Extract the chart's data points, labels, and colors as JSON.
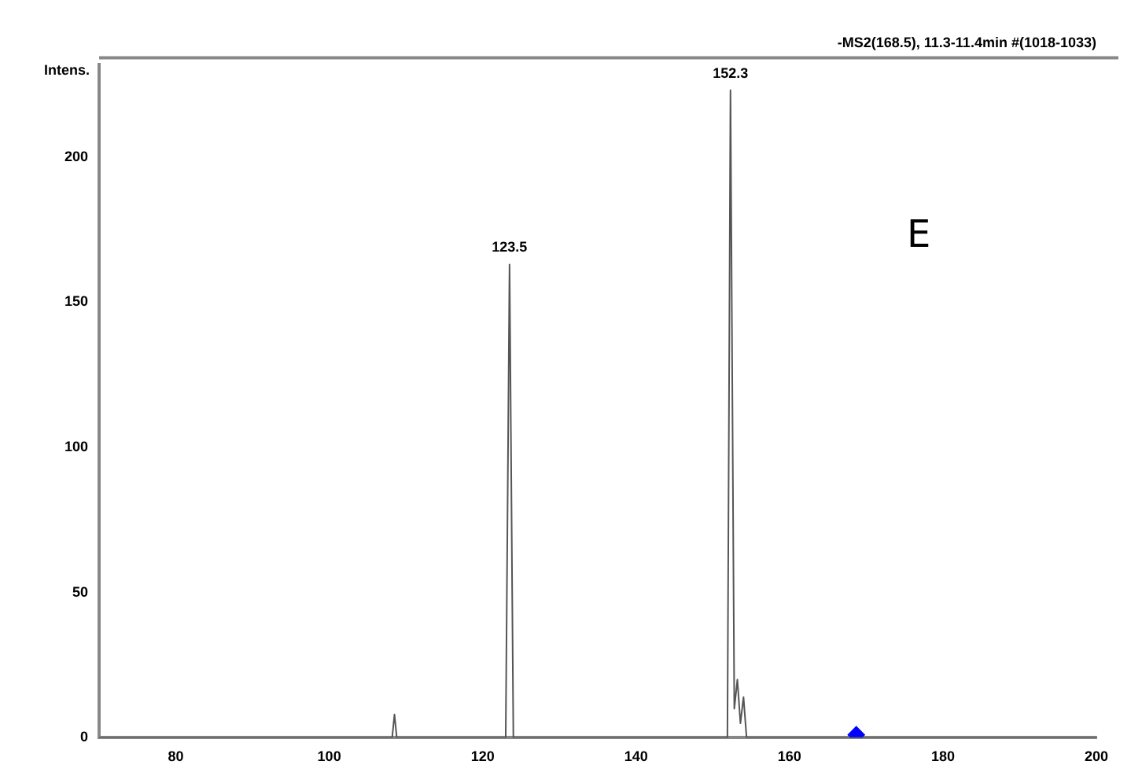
{
  "chart_data": {
    "type": "line",
    "title": "-MS2(168.5), 11.3-11.4min #(1018-1033)",
    "ylabel": "Intens.",
    "xlim": [
      70,
      200
    ],
    "xticks": [
      80,
      100,
      120,
      140,
      160,
      180,
      200
    ],
    "ylim": [
      0,
      232
    ],
    "yticks": [
      0,
      50,
      100,
      150,
      200
    ],
    "grid": false,
    "legend": false,
    "series": [
      {
        "marker": "none",
        "color": "#555555",
        "x": [
          70,
          108.2,
          108.5,
          108.8,
          123.0,
          123.5,
          124.0,
          151.9,
          152.3,
          152.8,
          153.2,
          153.6,
          154.0,
          154.4,
          200
        ],
        "values": [
          0,
          0,
          8,
          0,
          0,
          163,
          0,
          0,
          223,
          10,
          20,
          5,
          14,
          0,
          0
        ]
      },
      {
        "type": "scatter",
        "marker": "diamond",
        "color": "#0000ff",
        "x": [
          168.7
        ],
        "values": [
          1
        ]
      }
    ],
    "annotations": [
      {
        "text": "123.5",
        "x": 123.5,
        "y": 163
      },
      {
        "text": "152.3",
        "x": 152.3,
        "y": 223
      },
      "E"
    ]
  }
}
